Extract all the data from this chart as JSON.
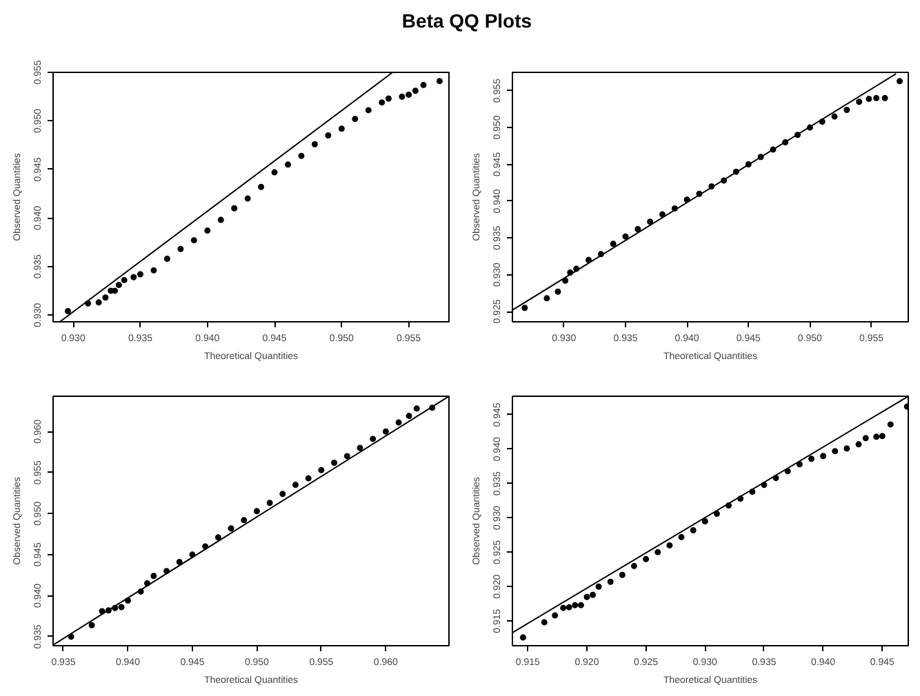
{
  "chart_data": [
    {
      "type": "scatter",
      "title": "Beta QQ Plots",
      "xlabel": "Theoretical Quantities",
      "ylabel": "Observed Quantities",
      "marker": "circle",
      "grid": false,
      "xlim": [
        0.9285,
        0.958
      ],
      "ylim": [
        0.9293,
        0.955
      ],
      "xticks": [
        {
          "value": 0.93,
          "label": "0.930"
        },
        {
          "value": 0.935,
          "label": "0.935"
        },
        {
          "value": 0.94,
          "label": "0.940"
        },
        {
          "value": 0.945,
          "label": "0.945"
        },
        {
          "value": 0.95,
          "label": "0.950"
        },
        {
          "value": 0.955,
          "label": "0.955"
        }
      ],
      "yticks": [
        {
          "value": 0.93,
          "label": "0.930"
        },
        {
          "value": 0.935,
          "label": "0.935"
        },
        {
          "value": 0.94,
          "label": "0.940"
        },
        {
          "value": 0.945,
          "label": "0.945"
        },
        {
          "value": 0.95,
          "label": "0.950"
        },
        {
          "value": 0.955,
          "label": "0.955"
        }
      ],
      "series": [
        {
          "color": "#000000",
          "x": [
            0.9296,
            0.9311,
            0.9319,
            0.9324,
            0.9328,
            0.9331,
            0.9334,
            0.9338,
            0.9345,
            0.935,
            0.936,
            0.937,
            0.938,
            0.939,
            0.94,
            0.941,
            0.942,
            0.943,
            0.944,
            0.945,
            0.946,
            0.947,
            0.948,
            0.949,
            0.95,
            0.951,
            0.952,
            0.953,
            0.9535,
            0.9545,
            0.955,
            0.9555,
            0.9561,
            0.9573
          ],
          "values": [
            0.9304,
            0.9312,
            0.9313,
            0.9318,
            0.9325,
            0.9325,
            0.9331,
            0.9336,
            0.9339,
            0.9342,
            0.9346,
            0.9358,
            0.9368,
            0.9377,
            0.9387,
            0.9398,
            0.941,
            0.942,
            0.9432,
            0.9447,
            0.9455,
            0.9464,
            0.9476,
            0.9485,
            0.9492,
            0.9502,
            0.9511,
            0.9519,
            0.9523,
            0.9525,
            0.9527,
            0.9531,
            0.9537,
            0.9541
          ]
        },
        {
          "type": "line",
          "marker": "none",
          "color": "#000000",
          "x": [
            0.929,
            0.9538
          ],
          "values": [
            0.9293,
            0.955
          ]
        }
      ]
    },
    {
      "type": "scatter",
      "xlabel": "Theoretical Quantities",
      "ylabel": "Observed Quantities",
      "marker": "circle",
      "grid": false,
      "xlim": [
        0.9258,
        0.958
      ],
      "ylim": [
        0.9236,
        0.9575
      ],
      "xticks": [
        {
          "value": 0.93,
          "label": "0.930"
        },
        {
          "value": 0.935,
          "label": "0.935"
        },
        {
          "value": 0.94,
          "label": "0.940"
        },
        {
          "value": 0.945,
          "label": "0.945"
        },
        {
          "value": 0.95,
          "label": "0.950"
        },
        {
          "value": 0.955,
          "label": "0.955"
        }
      ],
      "yticks": [
        {
          "value": 0.925,
          "label": "0.925"
        },
        {
          "value": 0.93,
          "label": "0.930"
        },
        {
          "value": 0.935,
          "label": "0.935"
        },
        {
          "value": 0.94,
          "label": "0.940"
        },
        {
          "value": 0.945,
          "label": "0.945"
        },
        {
          "value": 0.95,
          "label": "0.950"
        },
        {
          "value": 0.955,
          "label": "0.955"
        }
      ],
      "series": [
        {
          "color": "#000000",
          "x": [
            0.9268,
            0.9286,
            0.9295,
            0.9301,
            0.9305,
            0.931,
            0.932,
            0.933,
            0.934,
            0.935,
            0.936,
            0.937,
            0.938,
            0.939,
            0.94,
            0.941,
            0.942,
            0.943,
            0.944,
            0.945,
            0.946,
            0.947,
            0.948,
            0.949,
            0.95,
            0.951,
            0.952,
            0.953,
            0.954,
            0.9548,
            0.9554,
            0.9561,
            0.9573
          ],
          "values": [
            0.9255,
            0.9268,
            0.9277,
            0.9292,
            0.9303,
            0.9308,
            0.932,
            0.9328,
            0.9342,
            0.9352,
            0.9362,
            0.9372,
            0.9382,
            0.939,
            0.9402,
            0.941,
            0.942,
            0.9428,
            0.944,
            0.945,
            0.946,
            0.947,
            0.948,
            0.949,
            0.95,
            0.9508,
            0.9515,
            0.9524,
            0.9535,
            0.9539,
            0.954,
            0.954,
            0.9563
          ]
        },
        {
          "type": "line",
          "marker": "none",
          "color": "#000000",
          "x": [
            0.9258,
            0.957
          ],
          "values": [
            0.9252,
            0.9573
          ]
        }
      ]
    },
    {
      "type": "scatter",
      "xlabel": "Theoretical Quantities",
      "ylabel": "Observed Quantities",
      "marker": "circle",
      "grid": false,
      "xlim": [
        0.9342,
        0.9649
      ],
      "ylim": [
        0.9339,
        0.9643
      ],
      "xticks": [
        {
          "value": 0.935,
          "label": "0.935"
        },
        {
          "value": 0.94,
          "label": "0.940"
        },
        {
          "value": 0.945,
          "label": "0.945"
        },
        {
          "value": 0.95,
          "label": "0.950"
        },
        {
          "value": 0.955,
          "label": "0.955"
        },
        {
          "value": 0.96,
          "label": "0.960"
        }
      ],
      "yticks": [
        {
          "value": 0.935,
          "label": "0.935"
        },
        {
          "value": 0.94,
          "label": "0.940"
        },
        {
          "value": 0.945,
          "label": "0.945"
        },
        {
          "value": 0.95,
          "label": "0.950"
        },
        {
          "value": 0.955,
          "label": "0.955"
        },
        {
          "value": 0.96,
          "label": "0.960"
        }
      ],
      "series": [
        {
          "color": "#000000",
          "x": [
            0.9356,
            0.9372,
            0.938,
            0.9385,
            0.939,
            0.9395,
            0.94,
            0.941,
            0.9415,
            0.942,
            0.943,
            0.944,
            0.945,
            0.946,
            0.947,
            0.948,
            0.949,
            0.95,
            0.951,
            0.952,
            0.953,
            0.954,
            0.955,
            0.956,
            0.957,
            0.958,
            0.959,
            0.96,
            0.961,
            0.9618,
            0.9624,
            0.9636
          ],
          "values": [
            0.935,
            0.9364,
            0.9381,
            0.9382,
            0.9385,
            0.9386,
            0.9394,
            0.9405,
            0.9415,
            0.9424,
            0.943,
            0.9441,
            0.945,
            0.946,
            0.9471,
            0.9482,
            0.9492,
            0.9503,
            0.9513,
            0.9524,
            0.9535,
            0.9543,
            0.9553,
            0.9562,
            0.957,
            0.958,
            0.9591,
            0.96,
            0.9611,
            0.9619,
            0.9628,
            0.9629
          ]
        },
        {
          "type": "line",
          "marker": "none",
          "color": "#000000",
          "x": [
            0.9342,
            0.9649
          ],
          "values": [
            0.934,
            0.9643
          ]
        }
      ]
    },
    {
      "type": "scatter",
      "xlabel": "Theoretical Quantities",
      "ylabel": "Observed Quantities",
      "marker": "circle",
      "grid": false,
      "xlim": [
        0.9137,
        0.9472
      ],
      "ylim": [
        0.9114,
        0.9477
      ],
      "xticks": [
        {
          "value": 0.915,
          "label": "0.915"
        },
        {
          "value": 0.92,
          "label": "0.920"
        },
        {
          "value": 0.925,
          "label": "0.925"
        },
        {
          "value": 0.93,
          "label": "0.930"
        },
        {
          "value": 0.935,
          "label": "0.935"
        },
        {
          "value": 0.94,
          "label": "0.940"
        },
        {
          "value": 0.945,
          "label": "0.945"
        }
      ],
      "yticks": [
        {
          "value": 0.915,
          "label": "0.915"
        },
        {
          "value": 0.92,
          "label": "0.920"
        },
        {
          "value": 0.925,
          "label": "0.925"
        },
        {
          "value": 0.93,
          "label": "0.930"
        },
        {
          "value": 0.935,
          "label": "0.935"
        },
        {
          "value": 0.94,
          "label": "0.940"
        },
        {
          "value": 0.945,
          "label": "0.945"
        }
      ],
      "series": [
        {
          "color": "#000000",
          "x": [
            0.9146,
            0.9164,
            0.9173,
            0.918,
            0.9185,
            0.919,
            0.9195,
            0.92,
            0.9205,
            0.921,
            0.922,
            0.923,
            0.924,
            0.925,
            0.926,
            0.927,
            0.928,
            0.929,
            0.93,
            0.931,
            0.932,
            0.933,
            0.934,
            0.935,
            0.936,
            0.937,
            0.938,
            0.939,
            0.94,
            0.941,
            0.942,
            0.943,
            0.9436,
            0.9445,
            0.945,
            0.9457,
            0.9471
          ],
          "values": [
            0.9126,
            0.9148,
            0.9158,
            0.9169,
            0.917,
            0.9173,
            0.9173,
            0.9185,
            0.9188,
            0.92,
            0.9207,
            0.9217,
            0.923,
            0.924,
            0.925,
            0.926,
            0.9272,
            0.9282,
            0.9295,
            0.9306,
            0.9318,
            0.9328,
            0.9338,
            0.9348,
            0.9358,
            0.9368,
            0.9378,
            0.9386,
            0.939,
            0.9397,
            0.9401,
            0.9407,
            0.9416,
            0.9418,
            0.9419,
            0.9436,
            0.9462
          ]
        },
        {
          "type": "line",
          "marker": "none",
          "color": "#000000",
          "x": [
            0.9137,
            0.9472
          ],
          "values": [
            0.9133,
            0.9477
          ]
        }
      ]
    }
  ]
}
